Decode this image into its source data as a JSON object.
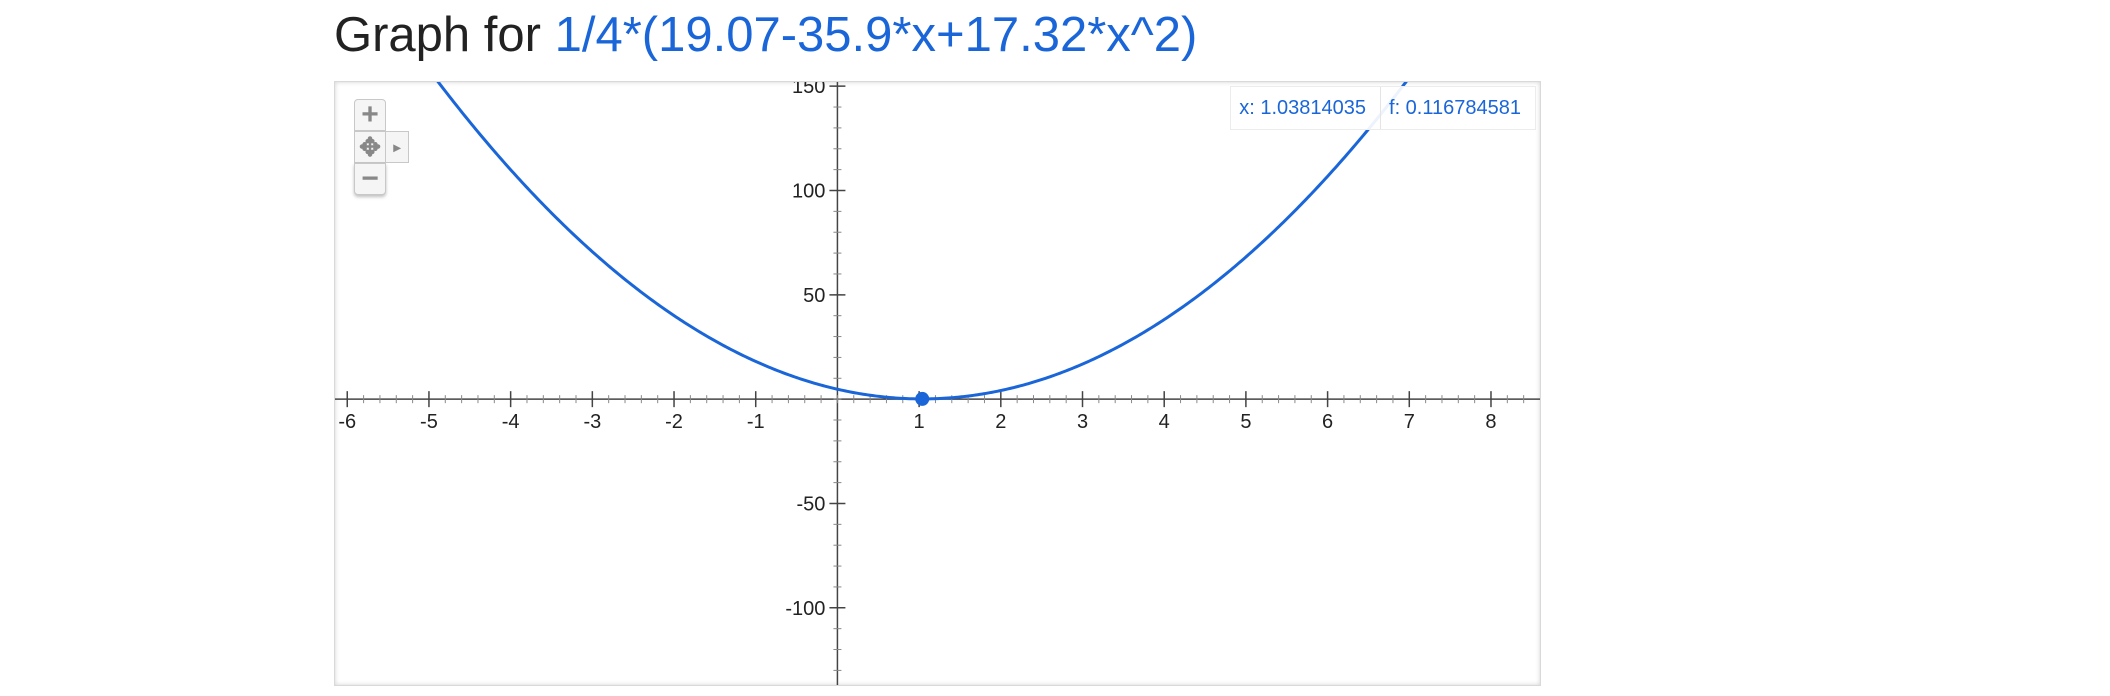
{
  "heading": {
    "prefix": "Graph for ",
    "expression": "1/4*(19.07-35.9*x+17.32*x^2)"
  },
  "readout": {
    "x_text": "x: 1.03814035",
    "f_text": "f: 0.116784581"
  },
  "controls": {
    "zoom_in": "+",
    "pan": "✥",
    "pan_right": "▸",
    "zoom_out": "−"
  },
  "colors": {
    "curve": "#1a66d9",
    "axis": "#444444",
    "text": "#222222"
  },
  "chart_data": {
    "type": "line",
    "title": "",
    "xlabel": "",
    "ylabel": "",
    "function": "1/4*(19.07-35.9*x+17.32*x^2)",
    "coefficients": {
      "scale": 0.25,
      "c0": 19.07,
      "c1": -35.9,
      "c2": 17.32
    },
    "xlim": [
      -6.15,
      8.6
    ],
    "ylim": [
      -137,
      152
    ],
    "x_ticks": [
      -6,
      -5,
      -4,
      -3,
      -2,
      -1,
      1,
      2,
      3,
      4,
      5,
      6,
      7,
      8
    ],
    "y_ticks": [
      -100,
      -50,
      50,
      100,
      150
    ],
    "highlighted_point": {
      "x": 1.03814035,
      "y": 0.116784581
    },
    "grid": false,
    "legend": "none"
  }
}
